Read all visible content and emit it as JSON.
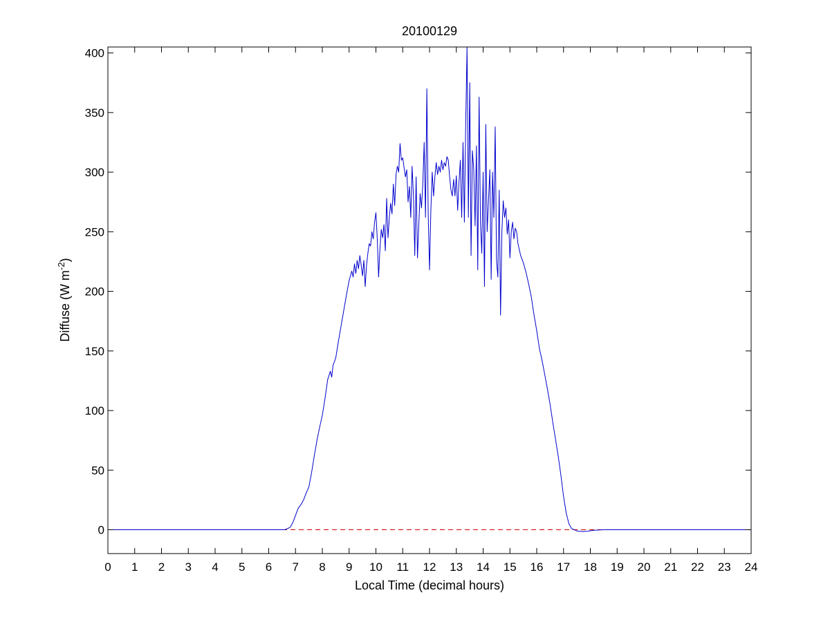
{
  "chart_data": {
    "type": "line",
    "title": "20100129",
    "xlabel": "Local Time (decimal hours)",
    "ylabel_base": "Diffuse (W m",
    "ylabel_sup": "-2",
    "ylabel_close": ")",
    "xlim": [
      0,
      24
    ],
    "ylim": [
      -20,
      405
    ],
    "x_ticks": [
      0,
      1,
      2,
      3,
      4,
      5,
      6,
      7,
      8,
      9,
      10,
      11,
      12,
      13,
      14,
      15,
      16,
      17,
      18,
      19,
      20,
      21,
      22,
      23,
      24
    ],
    "y_ticks": [
      0,
      50,
      100,
      150,
      200,
      250,
      300,
      350,
      400
    ],
    "grid": false,
    "colors": {
      "series": "#0000cc",
      "reference": "#cc0000",
      "axes": "#000000"
    },
    "series": [
      {
        "points": [
          [
            0,
            0
          ],
          [
            6.6,
            0
          ],
          [
            6.8,
            2
          ],
          [
            6.9,
            6
          ],
          [
            7.0,
            12
          ],
          [
            7.1,
            18
          ],
          [
            7.2,
            21
          ],
          [
            7.3,
            25
          ],
          [
            7.4,
            31
          ],
          [
            7.5,
            36
          ],
          [
            7.6,
            48
          ],
          [
            7.7,
            62
          ],
          [
            7.8,
            75
          ],
          [
            7.9,
            86
          ],
          [
            8.0,
            96
          ],
          [
            8.1,
            110
          ],
          [
            8.2,
            126
          ],
          [
            8.3,
            133
          ],
          [
            8.35,
            128
          ],
          [
            8.4,
            138
          ],
          [
            8.5,
            144
          ],
          [
            8.6,
            158
          ],
          [
            8.7,
            171
          ],
          [
            8.8,
            184
          ],
          [
            8.9,
            197
          ],
          [
            9.0,
            209
          ],
          [
            9.1,
            217
          ],
          [
            9.15,
            212
          ],
          [
            9.2,
            223
          ],
          [
            9.25,
            215
          ],
          [
            9.3,
            226
          ],
          [
            9.35,
            219
          ],
          [
            9.4,
            230
          ],
          [
            9.45,
            222
          ],
          [
            9.5,
            213
          ],
          [
            9.55,
            226
          ],
          [
            9.6,
            204
          ],
          [
            9.65,
            222
          ],
          [
            9.7,
            232
          ],
          [
            9.75,
            240
          ],
          [
            9.8,
            238
          ],
          [
            9.85,
            250
          ],
          [
            9.9,
            244
          ],
          [
            9.95,
            258
          ],
          [
            10.0,
            266
          ],
          [
            10.05,
            244
          ],
          [
            10.1,
            212
          ],
          [
            10.15,
            236
          ],
          [
            10.2,
            252
          ],
          [
            10.25,
            245
          ],
          [
            10.3,
            256
          ],
          [
            10.35,
            234
          ],
          [
            10.4,
            278
          ],
          [
            10.45,
            245
          ],
          [
            10.5,
            262
          ],
          [
            10.55,
            274
          ],
          [
            10.6,
            265
          ],
          [
            10.65,
            290
          ],
          [
            10.7,
            272
          ],
          [
            10.75,
            298
          ],
          [
            10.8,
            305
          ],
          [
            10.85,
            300
          ],
          [
            10.9,
            324
          ],
          [
            10.95,
            310
          ],
          [
            11.0,
            312
          ],
          [
            11.05,
            304
          ],
          [
            11.1,
            296
          ],
          [
            11.15,
            302
          ],
          [
            11.2,
            275
          ],
          [
            11.25,
            288
          ],
          [
            11.3,
            262
          ],
          [
            11.35,
            305
          ],
          [
            11.4,
            280
          ],
          [
            11.45,
            230
          ],
          [
            11.5,
            296
          ],
          [
            11.55,
            228
          ],
          [
            11.6,
            256
          ],
          [
            11.65,
            282
          ],
          [
            11.7,
            270
          ],
          [
            11.75,
            290
          ],
          [
            11.8,
            325
          ],
          [
            11.85,
            262
          ],
          [
            11.9,
            370
          ],
          [
            11.95,
            266
          ],
          [
            12.0,
            218
          ],
          [
            12.05,
            268
          ],
          [
            12.1,
            300
          ],
          [
            12.15,
            280
          ],
          [
            12.2,
            296
          ],
          [
            12.25,
            308
          ],
          [
            12.3,
            298
          ],
          [
            12.35,
            305
          ],
          [
            12.4,
            300
          ],
          [
            12.45,
            310
          ],
          [
            12.5,
            302
          ],
          [
            12.55,
            308
          ],
          [
            12.6,
            305
          ],
          [
            12.65,
            313
          ],
          [
            12.7,
            310
          ],
          [
            12.75,
            296
          ],
          [
            12.8,
            285
          ],
          [
            12.85,
            280
          ],
          [
            12.9,
            294
          ],
          [
            12.95,
            280
          ],
          [
            13.0,
            297
          ],
          [
            13.05,
            268
          ],
          [
            13.1,
            292
          ],
          [
            13.15,
            310
          ],
          [
            13.2,
            262
          ],
          [
            13.25,
            325
          ],
          [
            13.3,
            258
          ],
          [
            13.35,
            340
          ],
          [
            13.4,
            405
          ],
          [
            13.45,
            262
          ],
          [
            13.5,
            375
          ],
          [
            13.55,
            230
          ],
          [
            13.6,
            318
          ],
          [
            13.65,
            302
          ],
          [
            13.7,
            255
          ],
          [
            13.75,
            322
          ],
          [
            13.8,
            218
          ],
          [
            13.85,
            363
          ],
          [
            13.9,
            258
          ],
          [
            13.95,
            232
          ],
          [
            14.0,
            300
          ],
          [
            14.05,
            204
          ],
          [
            14.1,
            340
          ],
          [
            14.15,
            250
          ],
          [
            14.2,
            276
          ],
          [
            14.25,
            302
          ],
          [
            14.3,
            210
          ],
          [
            14.35,
            300
          ],
          [
            14.4,
            262
          ],
          [
            14.45,
            338
          ],
          [
            14.5,
            226
          ],
          [
            14.55,
            212
          ],
          [
            14.6,
            285
          ],
          [
            14.65,
            180
          ],
          [
            14.7,
            250
          ],
          [
            14.75,
            276
          ],
          [
            14.8,
            262
          ],
          [
            14.85,
            270
          ],
          [
            14.9,
            248
          ],
          [
            14.95,
            260
          ],
          [
            15.0,
            228
          ],
          [
            15.05,
            250
          ],
          [
            15.1,
            258
          ],
          [
            15.15,
            244
          ],
          [
            15.2,
            253
          ],
          [
            15.25,
            250
          ],
          [
            15.3,
            240
          ],
          [
            15.4,
            230
          ],
          [
            15.5,
            224
          ],
          [
            15.6,
            216
          ],
          [
            15.7,
            206
          ],
          [
            15.8,
            195
          ],
          [
            15.9,
            180
          ],
          [
            16.0,
            167
          ],
          [
            16.1,
            152
          ],
          [
            16.2,
            142
          ],
          [
            16.3,
            130
          ],
          [
            16.4,
            118
          ],
          [
            16.5,
            105
          ],
          [
            16.6,
            90
          ],
          [
            16.7,
            76
          ],
          [
            16.8,
            62
          ],
          [
            16.9,
            46
          ],
          [
            17.0,
            28
          ],
          [
            17.1,
            14
          ],
          [
            17.2,
            5
          ],
          [
            17.3,
            1
          ],
          [
            17.5,
            -1
          ],
          [
            17.7,
            -1.5
          ],
          [
            17.9,
            -1.2
          ],
          [
            18.1,
            -0.5
          ],
          [
            18.5,
            0
          ],
          [
            24,
            0
          ]
        ]
      }
    ],
    "reference_line_y": 0
  }
}
